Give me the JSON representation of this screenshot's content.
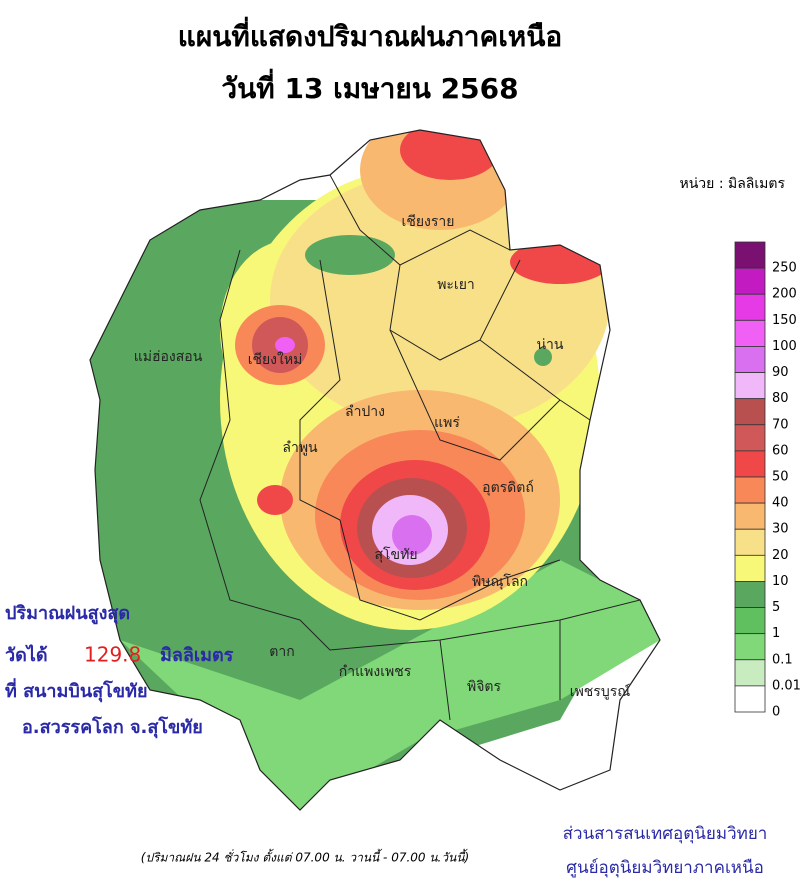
{
  "header": {
    "title": "แผนที่แสดงปริมาณฝนภาคเหนือ",
    "date": "วันที่ 13 เมษายน 2568"
  },
  "unit": "หน่วย : มิลลิเมตร",
  "provinces": [
    "เชียงราย",
    "พะเยา",
    "น่าน",
    "แม่ฮ่องสอน",
    "เชียงใหม่",
    "ลำปาง",
    "แพร่",
    "ลำพูน",
    "อุตรดิตถ์",
    "สุโขทัย",
    "พิษณุโลก",
    "ตาก",
    "กำแพงเพชร",
    "พิจิตร",
    "เพชรบูรณ์"
  ],
  "legend": [
    {
      "color": "#7a1070",
      "label": 250
    },
    {
      "color": "#c21bc2",
      "label": 200
    },
    {
      "color": "#e63ae6",
      "label": 150
    },
    {
      "color": "#f060f5",
      "label": 100
    },
    {
      "color": "#d870f0",
      "label": 90
    },
    {
      "color": "#f0b8f8",
      "label": 80
    },
    {
      "color": "#b85050",
      "label": 70
    },
    {
      "color": "#d05858",
      "label": 60
    },
    {
      "color": "#f04848",
      "label": 50
    },
    {
      "color": "#f88858",
      "label": 40
    },
    {
      "color": "#f8b870",
      "label": 30
    },
    {
      "color": "#f8e088",
      "label": 20
    },
    {
      "color": "#f8f878",
      "label": 10
    },
    {
      "color": "#5aa860",
      "label": 5
    },
    {
      "color": "#60c060",
      "label": 1
    },
    {
      "color": "#80d878",
      "label": 0.1
    },
    {
      "color": "#c8ecc0",
      "label": 0.01
    },
    {
      "color": "#ffffff",
      "label": 0
    }
  ],
  "max_rain": {
    "heading": "ปริมาณฝนสูงสุด",
    "measured": "วัดได้",
    "value": 129.8,
    "unit": "มิลลิเมตร",
    "station": "ที่ สนามบินสุโขทัย",
    "location": "อ.สวรรคโลก จ.สุโขทัย"
  },
  "footnote": "(ปริมาณฝน 24 ชั่วโมง ตั้งแต่ 07.00 น. วานนี้ - 07.00 น.วันนี้)",
  "agency": [
    "ส่วนสารสนเทศอุตุนิยมวิทยา",
    "ศูนย์อุตุนิยมวิทยาภาคเหนือ"
  ]
}
